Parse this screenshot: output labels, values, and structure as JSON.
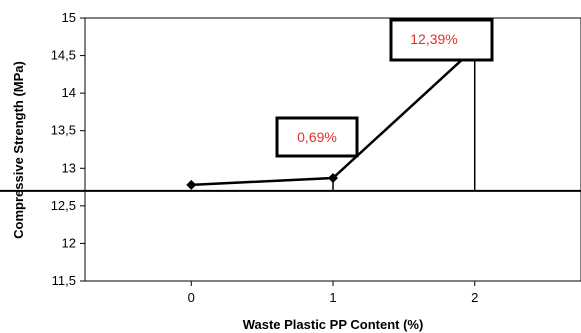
{
  "chart_data": {
    "type": "line",
    "x": [
      0,
      1,
      2
    ],
    "y": [
      12.78,
      12.87,
      14.6
    ],
    "xticks": [
      "0",
      "1",
      "2"
    ],
    "yticks": [
      "11,5",
      "12",
      "12,5",
      "13",
      "13,5",
      "14",
      "14,5",
      "15"
    ],
    "ylim": [
      11.5,
      15
    ],
    "xlim": [
      -0.75,
      2.75
    ],
    "xlabel": "Waste Plastic PP Content (%)",
    "ylabel": "Compressive  Strength (MPa)",
    "reference_line_y": 12.7,
    "annotations": [
      {
        "text": "0,69%",
        "x": 1
      },
      {
        "text": "12,39%",
        "x": 2
      }
    ],
    "colors": {
      "line": "#000000",
      "annotation_text": "#e8302a"
    },
    "grid": false,
    "legend": "none"
  }
}
